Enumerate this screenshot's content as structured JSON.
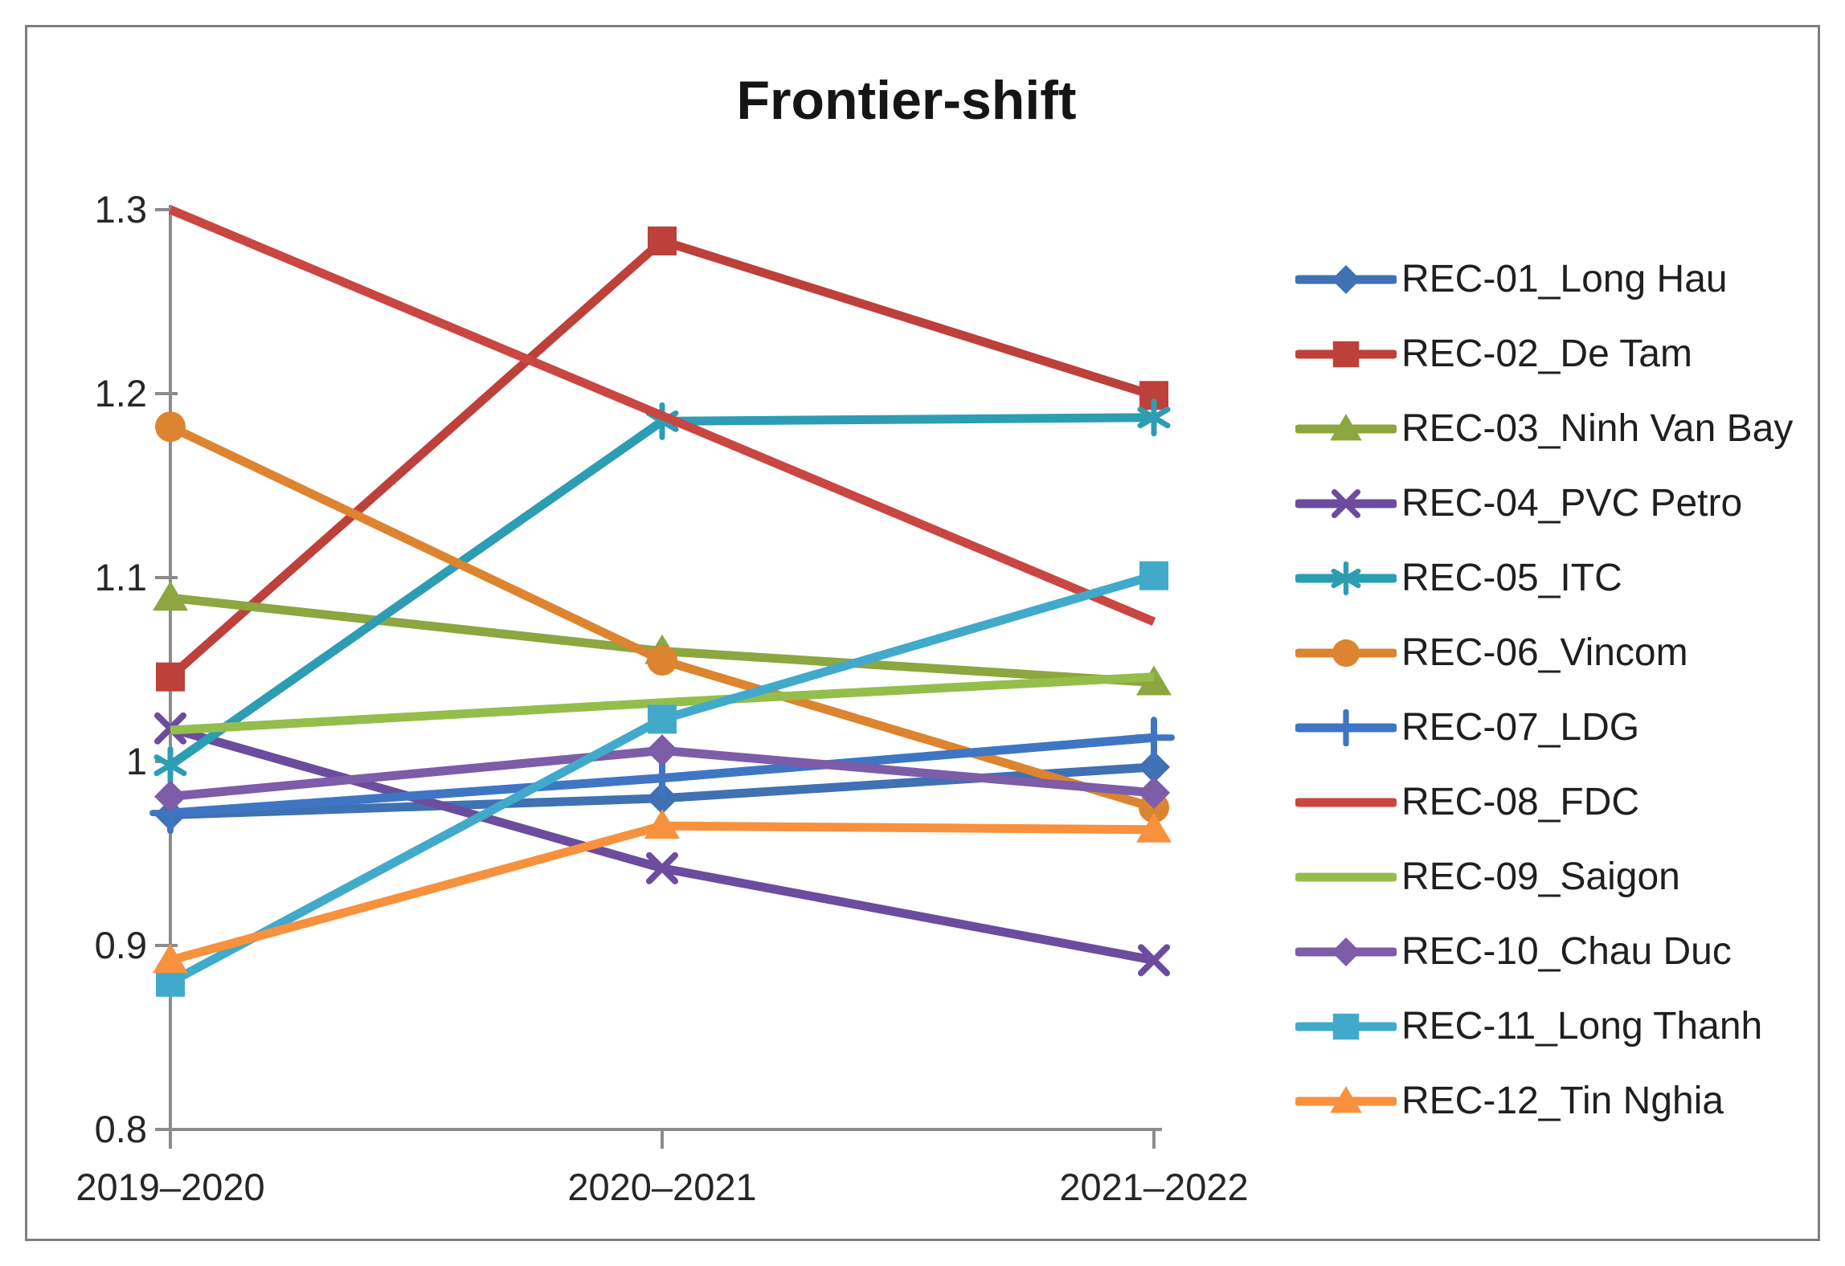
{
  "title": "Frontier-shift",
  "chart_data": {
    "type": "line",
    "title": "Frontier-shift",
    "categories": [
      "2019–2020",
      "2020–2021",
      "2021–2022"
    ],
    "y_ticks": [
      "0.8",
      "0.9",
      "1",
      "1.1",
      "1.2",
      "1.3"
    ],
    "ylim": [
      0.8,
      1.3
    ],
    "grid": false,
    "legend_position": "right",
    "series": [
      {
        "name": "REC-01_Long Hau",
        "color": "#3F71B3",
        "marker": "diamond",
        "values": [
          0.971,
          0.98,
          0.997
        ]
      },
      {
        "name": "REC-02_De Tam",
        "color": "#BE403B",
        "marker": "square",
        "values": [
          1.046,
          1.283,
          1.199
        ]
      },
      {
        "name": "REC-03_Ninh Van Bay",
        "color": "#8CA640",
        "marker": "triangle",
        "values": [
          1.089,
          1.06,
          1.043
        ]
      },
      {
        "name": "REC-04_PVC Petro",
        "color": "#6B4C9F",
        "marker": "x",
        "values": [
          1.018,
          0.942,
          0.892
        ]
      },
      {
        "name": "REC-05_ITC",
        "color": "#2D9DB4",
        "marker": "asterisk",
        "values": [
          0.998,
          1.185,
          1.187
        ]
      },
      {
        "name": "REC-06_Vincom",
        "color": "#DC8430",
        "marker": "circle",
        "values": [
          1.182,
          1.055,
          0.975
        ]
      },
      {
        "name": "REC-07_LDG",
        "color": "#3F76C4",
        "marker": "plus",
        "values": [
          0.972,
          0.991,
          1.013
        ]
      },
      {
        "name": "REC-08_FDC",
        "color": "#C94642",
        "marker": "none",
        "values": [
          1.3,
          1.188,
          1.076
        ]
      },
      {
        "name": "REC-09_Saigon",
        "color": "#94BE4C",
        "marker": "none",
        "values": [
          1.017,
          1.032,
          1.046
        ]
      },
      {
        "name": "REC-10_Chau Duc",
        "color": "#7D5CA8",
        "marker": "diamond",
        "values": [
          0.981,
          1.006,
          0.983
        ]
      },
      {
        "name": "REC-11_Long Thanh",
        "color": "#41AACB",
        "marker": "square",
        "values": [
          0.88,
          1.023,
          1.101
        ]
      },
      {
        "name": "REC-12_Tin Nghia",
        "color": "#F7913E",
        "marker": "triangle",
        "values": [
          0.892,
          0.965,
          0.963
        ]
      }
    ]
  },
  "colors": {
    "axis": "#8C8C8C",
    "tick_text": "#262626",
    "title_text": "#151515",
    "border": "#7F7F7F",
    "background": "#FFFFFF"
  }
}
